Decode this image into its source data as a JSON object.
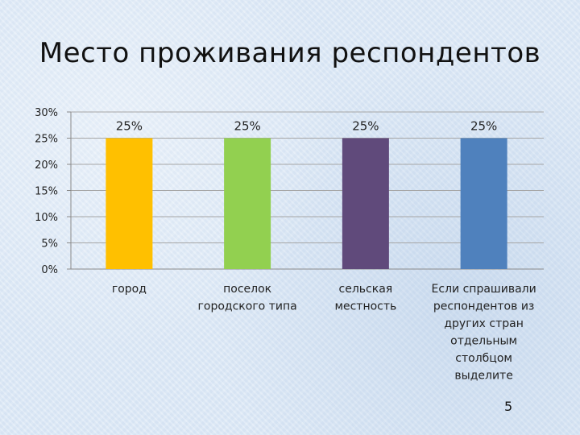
{
  "slide": {
    "title": "Место проживания респондентов",
    "page_number": "5"
  },
  "chart_data": {
    "type": "bar",
    "title": "Место проживания респондентов",
    "xlabel": "",
    "ylabel": "",
    "ylim": [
      0,
      30
    ],
    "y_ticks": [
      "0%",
      "5%",
      "10%",
      "15%",
      "20%",
      "25%",
      "30%"
    ],
    "y_tick_values": [
      0,
      5,
      10,
      15,
      20,
      25,
      30
    ],
    "categories": [
      [
        "город"
      ],
      [
        "поселок",
        "городского типа"
      ],
      [
        "сельская",
        "местность"
      ],
      [
        "Если спрашивали",
        "респондентов из",
        "других стран",
        "отдельным",
        "столбцом",
        "выделите"
      ]
    ],
    "values": [
      25,
      25,
      25,
      25
    ],
    "data_labels": [
      "25%",
      "25%",
      "25%",
      "25%"
    ],
    "colors": [
      "#ffc000",
      "#92d050",
      "#604a7b",
      "#4f81bd"
    ],
    "grid": true,
    "legend": "none"
  }
}
